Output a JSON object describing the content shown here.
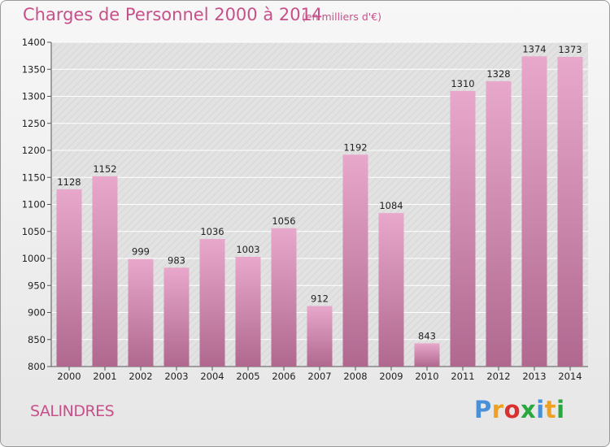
{
  "header": {
    "title": "Charges de Personnel 2000 à 2014",
    "subtitle": "(en milliers d'€)"
  },
  "footer": {
    "city": "SALINDRES",
    "logo_text": "Proxiti"
  },
  "colors": {
    "accent": "#c8508a",
    "bar_light": "#e8a8cb",
    "bar_dark": "#b0688f",
    "plot_bg": "#e2e2e2",
    "logo_letters": [
      "#4a90d9",
      "#f0a020",
      "#d93030",
      "#2aa840",
      "#4a90d9",
      "#f0a020",
      "#2aa840"
    ]
  },
  "chart_data": {
    "type": "bar",
    "categories": [
      "2000",
      "2001",
      "2002",
      "2003",
      "2004",
      "2005",
      "2006",
      "2007",
      "2008",
      "2009",
      "2010",
      "2011",
      "2012",
      "2013",
      "2014"
    ],
    "values": [
      1128,
      1152,
      999,
      983,
      1036,
      1003,
      1056,
      912,
      1192,
      1084,
      843,
      1310,
      1328,
      1374,
      1373
    ],
    "ylim": [
      800,
      1400
    ],
    "yticks": [
      800,
      850,
      900,
      950,
      1000,
      1050,
      1100,
      1150,
      1200,
      1250,
      1300,
      1350,
      1400
    ],
    "grid": true,
    "legend": "none"
  }
}
